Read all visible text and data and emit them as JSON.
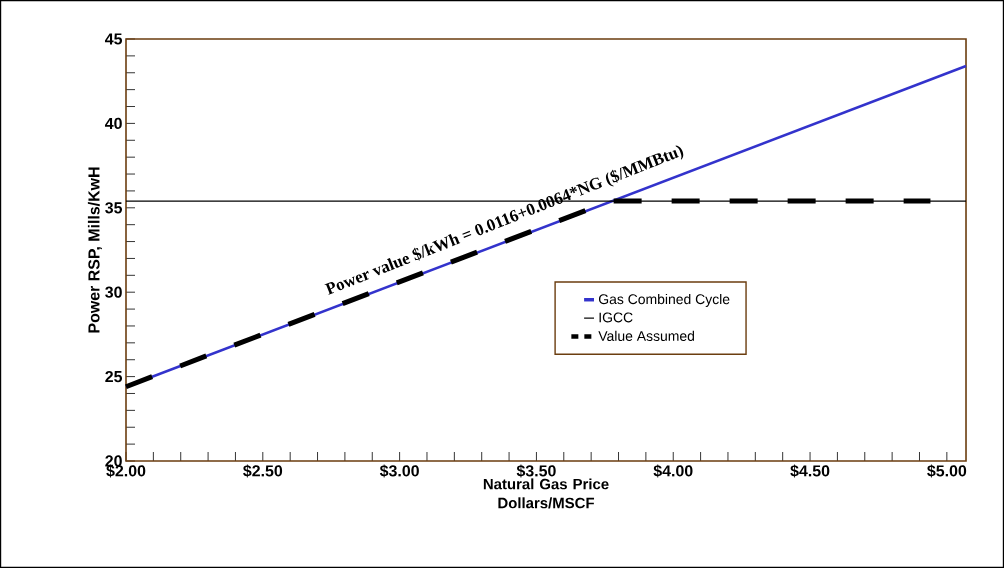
{
  "chart_data": {
    "type": "line",
    "xlabel": "Natural Gas Price Dollars/MSCF",
    "ylabel": "Power RSP, Mills/KwH",
    "annotations": [
      "Power value $/kWh = 0.0116+0.0064*NG ($/MMBtu)"
    ],
    "series": [
      {
        "name": "Gas Combined Cycle",
        "color": "#3333cc",
        "x": [
          2.0,
          5.07
        ],
        "values": [
          24.4,
          43.4
        ]
      },
      {
        "name": "IGCC",
        "color": "#000000",
        "x": [
          2.0,
          5.07
        ],
        "values": [
          35.4,
          35.4
        ]
      },
      {
        "name": "Value Assumed",
        "color": "#000000",
        "line_style": "dashed",
        "x": [
          2.0,
          3.77,
          4.94
        ],
        "values": [
          24.4,
          35.4,
          35.4
        ]
      }
    ],
    "xlim": [
      2.0,
      5.07
    ],
    "ylim": [
      20,
      45
    ],
    "xticks": [
      {
        "value": 2.0,
        "label": "$2.00"
      },
      {
        "value": 2.5,
        "label": "$2.50"
      },
      {
        "value": 3.0,
        "label": "$3.00"
      },
      {
        "value": 3.5,
        "label": "$3.50"
      },
      {
        "value": 4.0,
        "label": "$4.00"
      },
      {
        "value": 4.5,
        "label": "$4.50"
      },
      {
        "value": 5.0,
        "label": "$5.00"
      }
    ],
    "yticks": [
      20,
      25,
      30,
      35,
      40,
      45
    ],
    "grid": false,
    "legend": "bottom right",
    "marker": "none"
  }
}
